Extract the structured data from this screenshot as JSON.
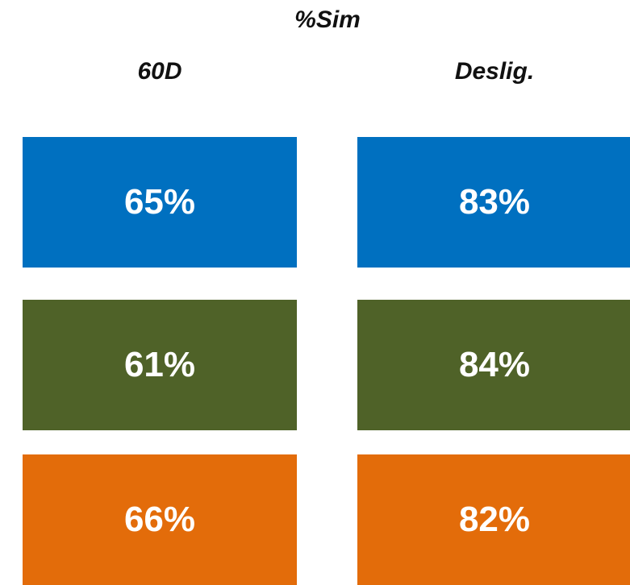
{
  "chart_data": {
    "type": "table",
    "title": "%Sim",
    "columns": [
      "60D",
      "Deslig."
    ],
    "rows": [
      {
        "color": "#0070C0",
        "values": [
          "65%",
          "83%"
        ]
      },
      {
        "color": "#4F6228",
        "values": [
          "61%",
          "84%"
        ]
      },
      {
        "color": "#E36C0A",
        "values": [
          "66%",
          "82%"
        ]
      }
    ]
  }
}
